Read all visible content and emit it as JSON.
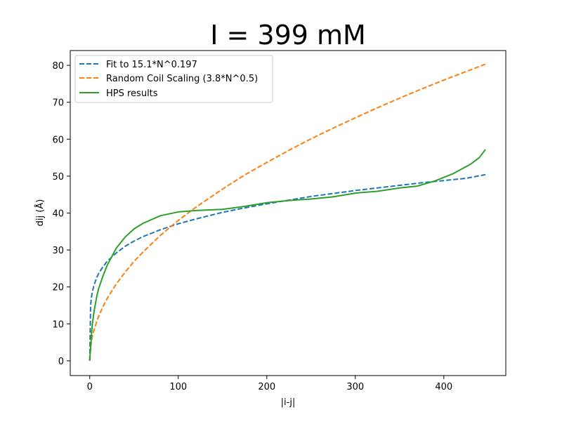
{
  "chart_data": {
    "type": "line",
    "title": "I = 399 mM",
    "xlabel": "|i-j|",
    "ylabel": "dij (Å)",
    "xlim": [
      -22,
      470
    ],
    "ylim": [
      -4,
      84
    ],
    "xticks": [
      0,
      100,
      200,
      300,
      400
    ],
    "yticks": [
      0,
      10,
      20,
      30,
      40,
      50,
      60,
      70,
      80
    ],
    "grid": false,
    "legend_position": "top-left",
    "series": [
      {
        "name": "Fit to 15.1*N^0.197",
        "style": "dashed",
        "color": "#1f77b4",
        "x": [
          0,
          1,
          2,
          3,
          5,
          8,
          10,
          15,
          20,
          30,
          40,
          50,
          60,
          80,
          100,
          120,
          150,
          175,
          200,
          225,
          250,
          275,
          300,
          325,
          350,
          375,
          400,
          425,
          447
        ],
        "y": [
          0,
          15.1,
          17.3,
          18.7,
          20.6,
          22.6,
          23.6,
          25.5,
          27.0,
          29.2,
          31.0,
          32.4,
          33.6,
          35.5,
          37.1,
          38.4,
          40.2,
          41.4,
          42.5,
          43.5,
          44.5,
          45.3,
          46.1,
          46.8,
          47.5,
          48.2,
          48.8,
          49.4,
          50.4
        ]
      },
      {
        "name": "Random Coil Scaling (3.8*N^0.5)",
        "style": "dashed",
        "color": "#ff7f0e",
        "x": [
          0,
          1,
          2,
          3,
          5,
          8,
          10,
          15,
          20,
          30,
          40,
          50,
          60,
          80,
          100,
          120,
          150,
          175,
          200,
          225,
          250,
          275,
          300,
          325,
          350,
          375,
          400,
          425,
          447
        ],
        "y": [
          0,
          3.8,
          5.4,
          6.6,
          8.5,
          10.7,
          12.0,
          14.7,
          17.0,
          20.8,
          24.0,
          26.9,
          29.4,
          34.0,
          38.0,
          41.6,
          46.5,
          50.3,
          53.7,
          57.0,
          60.1,
          63.0,
          65.8,
          68.5,
          71.1,
          73.6,
          76.0,
          78.3,
          80.3
        ]
      },
      {
        "name": "HPS results",
        "style": "solid",
        "color": "#2ca02c",
        "x": [
          0,
          1,
          2,
          3,
          5,
          8,
          10,
          15,
          20,
          30,
          40,
          50,
          60,
          80,
          100,
          120,
          150,
          175,
          200,
          225,
          250,
          275,
          300,
          325,
          350,
          370,
          390,
          410,
          430,
          440,
          447
        ],
        "y": [
          0,
          3.5,
          7.0,
          10.0,
          13.5,
          17.5,
          19.5,
          23.0,
          26.0,
          30.5,
          33.5,
          35.7,
          37.2,
          39.3,
          40.3,
          40.7,
          41.0,
          41.8,
          42.8,
          43.4,
          43.8,
          44.4,
          45.4,
          45.9,
          46.8,
          47.3,
          48.7,
          50.6,
          53.2,
          55.0,
          57.2
        ]
      }
    ]
  }
}
